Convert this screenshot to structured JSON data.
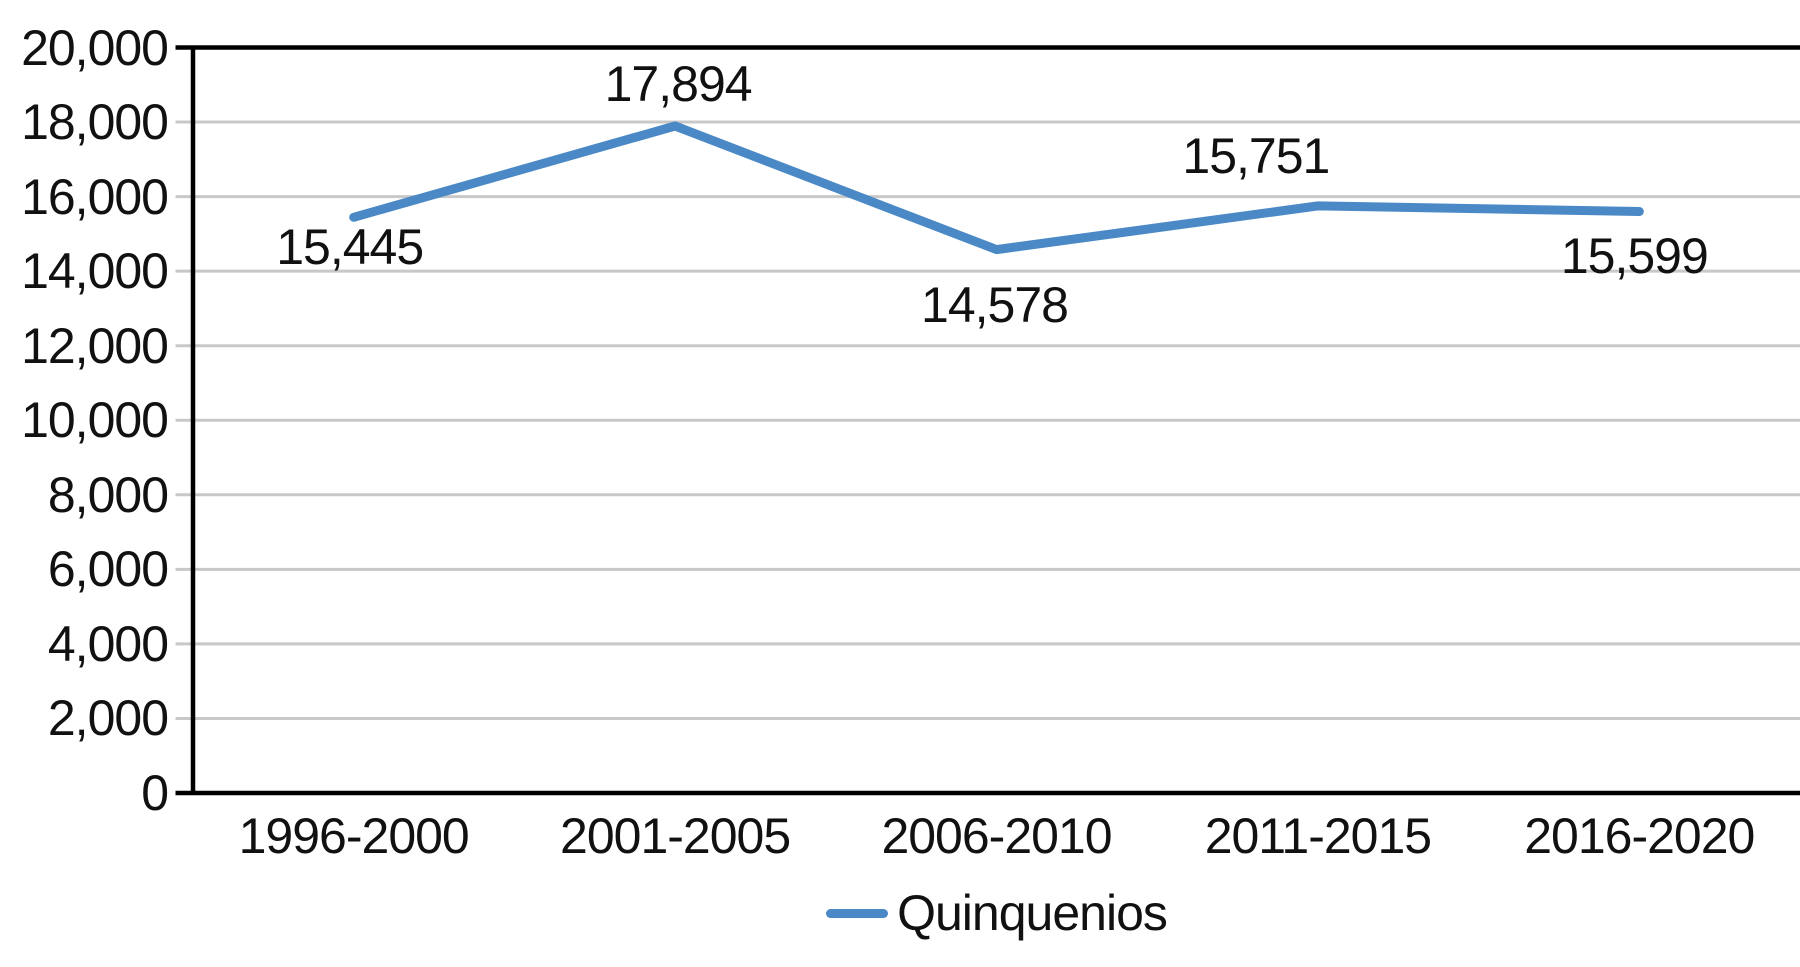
{
  "chart_data": {
    "type": "line",
    "title": "",
    "categories": [
      "1996-2000",
      "2001-2005",
      "2006-2010",
      "2011-2015",
      "2016-2020"
    ],
    "series": [
      {
        "name": "Quinquenios",
        "values": [
          15445,
          17894,
          14578,
          15751,
          15599
        ]
      }
    ],
    "data_labels": [
      "15,445",
      "17,894",
      "14,578",
      "15,751",
      "15,599"
    ],
    "xlabel": "",
    "ylabel": "",
    "ylim": [
      0,
      20000
    ],
    "ytick_step": 2000,
    "ytick_labels": [
      "0",
      "2,000",
      "4,000",
      "6,000",
      "8,000",
      "10,000",
      "12,000",
      "14,000",
      "16,000",
      "18,000",
      "20,000"
    ],
    "grid": true,
    "legend_position": "bottom",
    "legend_entries": [
      "Quinquenios"
    ],
    "colors": {
      "series_line": "#4A89C6",
      "gridline": "#C8C8C8",
      "axis": "#000000",
      "text": "#111111",
      "background": "#FFFFFF"
    }
  }
}
